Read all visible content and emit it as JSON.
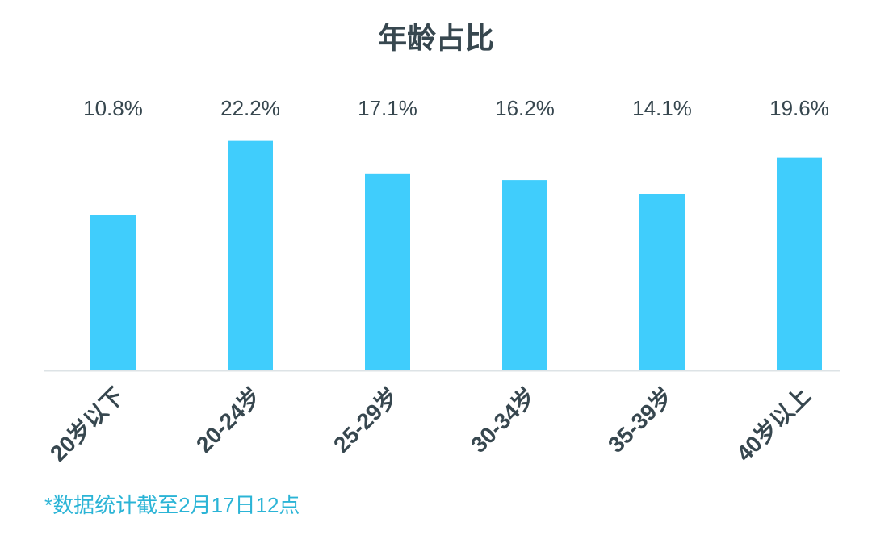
{
  "chart_data": {
    "type": "bar",
    "title": "年龄占比",
    "categories": [
      "20岁以下",
      "20-24岁",
      "25-29岁",
      "30-34岁",
      "35-39岁",
      "40岁以上"
    ],
    "values": [
      10.8,
      22.2,
      17.1,
      16.2,
      14.1,
      19.6
    ],
    "value_labels": [
      "10.8%",
      "22.2%",
      "17.1%",
      "16.2%",
      "14.1%",
      "19.6%"
    ],
    "color": "#40cdfc",
    "ylim": [
      -13,
      25
    ],
    "note": "*数据统计截至2月17日12点"
  }
}
